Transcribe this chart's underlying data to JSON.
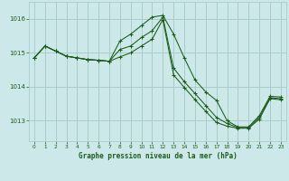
{
  "background_color": "#cce8e8",
  "grid_color": "#aacccc",
  "line_color": "#1a5c1a",
  "title": "Graphe pression niveau de la mer (hPa)",
  "xlim": [
    -0.5,
    23.5
  ],
  "ylim": [
    1012.4,
    1016.5
  ],
  "yticks": [
    1013,
    1014,
    1015,
    1016
  ],
  "xticks": [
    0,
    1,
    2,
    3,
    4,
    5,
    6,
    7,
    8,
    9,
    10,
    11,
    12,
    13,
    14,
    15,
    16,
    17,
    18,
    19,
    20,
    21,
    22,
    23
  ],
  "series": [
    [
      1014.85,
      1015.2,
      1015.05,
      1014.9,
      1014.85,
      1014.8,
      1014.78,
      1014.75,
      1015.35,
      1015.55,
      1015.8,
      1016.05,
      1016.1,
      1015.55,
      1014.85,
      1014.2,
      1013.85,
      1013.6,
      1013.0,
      1012.82,
      1012.82,
      1013.15,
      1013.72,
      1013.7
    ],
    [
      1014.85,
      1015.2,
      1015.05,
      1014.9,
      1014.85,
      1014.8,
      1014.78,
      1014.75,
      1015.1,
      1015.2,
      1015.45,
      1015.65,
      1016.05,
      1014.55,
      1014.15,
      1013.8,
      1013.45,
      1013.1,
      1012.92,
      1012.8,
      1012.8,
      1013.1,
      1013.68,
      1013.65
    ],
    [
      1014.85,
      1015.2,
      1015.05,
      1014.9,
      1014.85,
      1014.8,
      1014.78,
      1014.75,
      1014.88,
      1015.0,
      1015.2,
      1015.4,
      1015.98,
      1014.35,
      1013.98,
      1013.62,
      1013.28,
      1012.95,
      1012.84,
      1012.78,
      1012.78,
      1013.05,
      1013.65,
      1013.62
    ]
  ]
}
